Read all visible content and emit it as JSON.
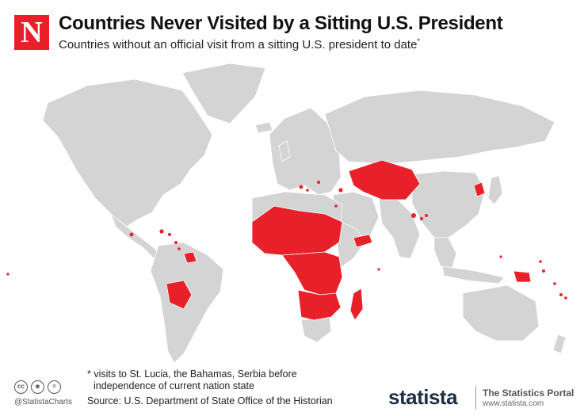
{
  "header": {
    "logo_letter": "N",
    "title": "Countries Never Visited by a Sitting U.S. President",
    "subtitle": "Countries without an official visit from a sitting U.S. president to date",
    "subtitle_marker": "*"
  },
  "map": {
    "colors": {
      "not_visited": "#e8202a",
      "visited": "#d4d4d4",
      "background": "#ffffff"
    },
    "not_visited_regions": [
      "Sahel and West Africa",
      "Central Africa",
      "Southern Africa",
      "Madagascar",
      "Yemen",
      "Central Asia",
      "Mongolia",
      "North Korea",
      "Bolivia",
      "Guyana and Suriname",
      "Caribbean islands",
      "Papua New Guinea",
      "Pacific islands",
      "Balkans"
    ]
  },
  "footer": {
    "footnote_line1": "* visits to St. Lucia, the Bahamas, Serbia before",
    "footnote_line2": "independence of current nation state",
    "source": "Source: U.S. Department of State Office of the Historian",
    "handle": "@StatistaCharts",
    "cc_icons": [
      "cc-icon",
      "by-icon",
      "nd-icon"
    ],
    "brand": "statista",
    "portal": "The Statistics Portal",
    "url": "www.statista.com"
  }
}
